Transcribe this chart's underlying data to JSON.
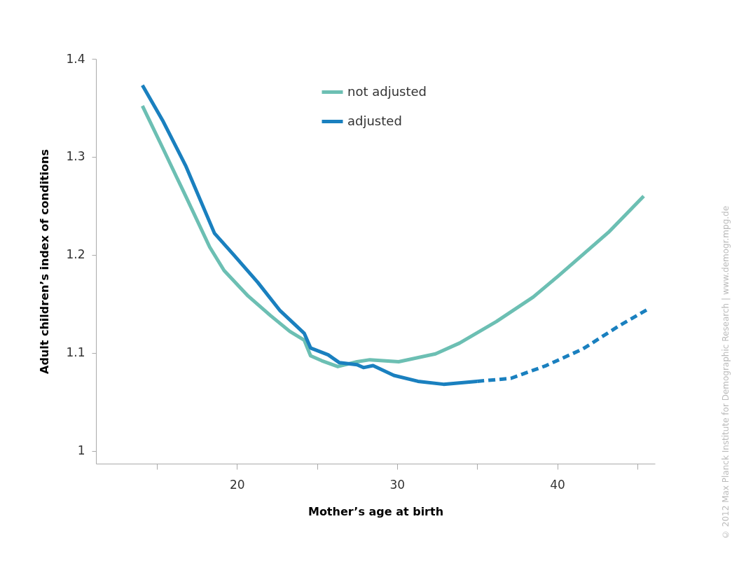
{
  "chart_data": {
    "type": "line",
    "xlabel": "Mother’s age at birth",
    "ylabel": "Adult children’s index of conditions",
    "xlim": [
      11.2,
      46.1
    ],
    "ylim": [
      0.987,
      1.4
    ],
    "xticks": [
      {
        "value": 15,
        "label": null
      },
      20,
      {
        "value": 25,
        "label": null
      },
      30,
      {
        "value": 35,
        "label": null
      },
      40,
      {
        "value": 45,
        "label": null
      }
    ],
    "yticks": [
      1,
      1.1,
      1.2,
      1.3,
      1.4
    ],
    "grid": false,
    "legend": "top",
    "line_style": "solid",
    "annotations": [
      "© 2012 Max Planck Institute for Demographic Research | www.demogr.mpg.de"
    ],
    "series": [
      {
        "name": "not adjusted",
        "color": "#6cbfb3",
        "x": [
          14.1,
          15.4,
          16.8,
          18.3,
          19.2,
          20.7,
          22.1,
          23.3,
          24.2,
          24.6,
          25.3,
          26.3,
          27.5,
          28.3,
          30.1,
          32.4,
          33.9,
          36.2,
          38.5,
          40.1,
          43.2,
          45.4
        ],
        "values": [
          1.352,
          1.308,
          1.26,
          1.208,
          1.184,
          1.158,
          1.138,
          1.122,
          1.113,
          1.097,
          1.092,
          1.086,
          1.091,
          1.093,
          1.091,
          1.099,
          1.11,
          1.132,
          1.157,
          1.179,
          1.223,
          1.26
        ]
      },
      {
        "name": "adjusted",
        "color": "#1a80bf",
        "x": [
          14.1,
          15.4,
          16.8,
          18.6,
          19.8,
          21.3,
          22.7,
          24.2,
          24.6,
          25.7,
          26.4,
          27.5,
          27.9,
          28.5,
          29.8,
          31.3,
          32.9,
          35.0
        ],
        "values": [
          1.373,
          1.336,
          1.291,
          1.222,
          1.2,
          1.172,
          1.143,
          1.12,
          1.105,
          1.098,
          1.09,
          1.088,
          1.085,
          1.087,
          1.077,
          1.071,
          1.068,
          1.071
        ]
      },
      {
        "color": "#1a80bf",
        "line_style": "dashed",
        "x": [
          35.0,
          37.1,
          39.3,
          41.6,
          43.9,
          45.7
        ],
        "values": [
          1.071,
          1.074,
          1.087,
          1.104,
          1.128,
          1.145
        ]
      }
    ]
  }
}
